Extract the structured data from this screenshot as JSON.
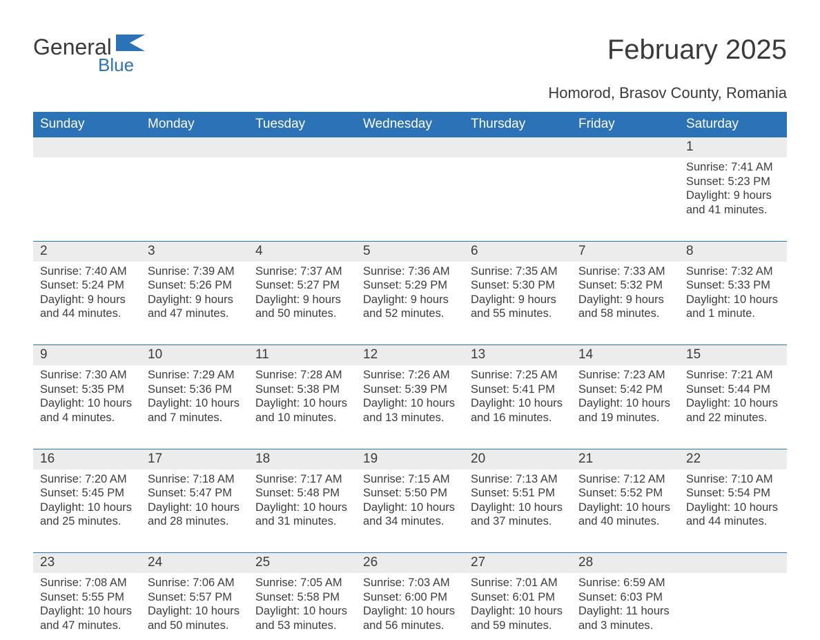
{
  "logo": {
    "word1": "General",
    "word2": "Blue",
    "flag_color": "#2b73b6",
    "text_color": "#3a3a3a"
  },
  "title": "February 2025",
  "location": "Homorod, Brasov County, Romania",
  "colors": {
    "header_bg": "#2b73b6",
    "header_text": "#ffffff",
    "daynum_bg": "#ececec",
    "row_divider": "#2b73b6",
    "body_text": "#3c3c3c",
    "page_bg": "#ffffff"
  },
  "typography": {
    "month_title_fontsize": 40,
    "location_fontsize": 22,
    "weekday_fontsize": 19,
    "daynum_fontsize": 19,
    "detail_fontsize": 16.5,
    "font_family": "Arial"
  },
  "layout": {
    "columns": 7,
    "weeks": 5
  },
  "weekdays": [
    "Sunday",
    "Monday",
    "Tuesday",
    "Wednesday",
    "Thursday",
    "Friday",
    "Saturday"
  ],
  "weeks": [
    [
      null,
      null,
      null,
      null,
      null,
      null,
      {
        "n": "1",
        "sunrise": "Sunrise: 7:41 AM",
        "sunset": "Sunset: 5:23 PM",
        "daylight": "Daylight: 9 hours and 41 minutes."
      }
    ],
    [
      {
        "n": "2",
        "sunrise": "Sunrise: 7:40 AM",
        "sunset": "Sunset: 5:24 PM",
        "daylight": "Daylight: 9 hours and 44 minutes."
      },
      {
        "n": "3",
        "sunrise": "Sunrise: 7:39 AM",
        "sunset": "Sunset: 5:26 PM",
        "daylight": "Daylight: 9 hours and 47 minutes."
      },
      {
        "n": "4",
        "sunrise": "Sunrise: 7:37 AM",
        "sunset": "Sunset: 5:27 PM",
        "daylight": "Daylight: 9 hours and 50 minutes."
      },
      {
        "n": "5",
        "sunrise": "Sunrise: 7:36 AM",
        "sunset": "Sunset: 5:29 PM",
        "daylight": "Daylight: 9 hours and 52 minutes."
      },
      {
        "n": "6",
        "sunrise": "Sunrise: 7:35 AM",
        "sunset": "Sunset: 5:30 PM",
        "daylight": "Daylight: 9 hours and 55 minutes."
      },
      {
        "n": "7",
        "sunrise": "Sunrise: 7:33 AM",
        "sunset": "Sunset: 5:32 PM",
        "daylight": "Daylight: 9 hours and 58 minutes."
      },
      {
        "n": "8",
        "sunrise": "Sunrise: 7:32 AM",
        "sunset": "Sunset: 5:33 PM",
        "daylight": "Daylight: 10 hours and 1 minute."
      }
    ],
    [
      {
        "n": "9",
        "sunrise": "Sunrise: 7:30 AM",
        "sunset": "Sunset: 5:35 PM",
        "daylight": "Daylight: 10 hours and 4 minutes."
      },
      {
        "n": "10",
        "sunrise": "Sunrise: 7:29 AM",
        "sunset": "Sunset: 5:36 PM",
        "daylight": "Daylight: 10 hours and 7 minutes."
      },
      {
        "n": "11",
        "sunrise": "Sunrise: 7:28 AM",
        "sunset": "Sunset: 5:38 PM",
        "daylight": "Daylight: 10 hours and 10 minutes."
      },
      {
        "n": "12",
        "sunrise": "Sunrise: 7:26 AM",
        "sunset": "Sunset: 5:39 PM",
        "daylight": "Daylight: 10 hours and 13 minutes."
      },
      {
        "n": "13",
        "sunrise": "Sunrise: 7:25 AM",
        "sunset": "Sunset: 5:41 PM",
        "daylight": "Daylight: 10 hours and 16 minutes."
      },
      {
        "n": "14",
        "sunrise": "Sunrise: 7:23 AM",
        "sunset": "Sunset: 5:42 PM",
        "daylight": "Daylight: 10 hours and 19 minutes."
      },
      {
        "n": "15",
        "sunrise": "Sunrise: 7:21 AM",
        "sunset": "Sunset: 5:44 PM",
        "daylight": "Daylight: 10 hours and 22 minutes."
      }
    ],
    [
      {
        "n": "16",
        "sunrise": "Sunrise: 7:20 AM",
        "sunset": "Sunset: 5:45 PM",
        "daylight": "Daylight: 10 hours and 25 minutes."
      },
      {
        "n": "17",
        "sunrise": "Sunrise: 7:18 AM",
        "sunset": "Sunset: 5:47 PM",
        "daylight": "Daylight: 10 hours and 28 minutes."
      },
      {
        "n": "18",
        "sunrise": "Sunrise: 7:17 AM",
        "sunset": "Sunset: 5:48 PM",
        "daylight": "Daylight: 10 hours and 31 minutes."
      },
      {
        "n": "19",
        "sunrise": "Sunrise: 7:15 AM",
        "sunset": "Sunset: 5:50 PM",
        "daylight": "Daylight: 10 hours and 34 minutes."
      },
      {
        "n": "20",
        "sunrise": "Sunrise: 7:13 AM",
        "sunset": "Sunset: 5:51 PM",
        "daylight": "Daylight: 10 hours and 37 minutes."
      },
      {
        "n": "21",
        "sunrise": "Sunrise: 7:12 AM",
        "sunset": "Sunset: 5:52 PM",
        "daylight": "Daylight: 10 hours and 40 minutes."
      },
      {
        "n": "22",
        "sunrise": "Sunrise: 7:10 AM",
        "sunset": "Sunset: 5:54 PM",
        "daylight": "Daylight: 10 hours and 44 minutes."
      }
    ],
    [
      {
        "n": "23",
        "sunrise": "Sunrise: 7:08 AM",
        "sunset": "Sunset: 5:55 PM",
        "daylight": "Daylight: 10 hours and 47 minutes."
      },
      {
        "n": "24",
        "sunrise": "Sunrise: 7:06 AM",
        "sunset": "Sunset: 5:57 PM",
        "daylight": "Daylight: 10 hours and 50 minutes."
      },
      {
        "n": "25",
        "sunrise": "Sunrise: 7:05 AM",
        "sunset": "Sunset: 5:58 PM",
        "daylight": "Daylight: 10 hours and 53 minutes."
      },
      {
        "n": "26",
        "sunrise": "Sunrise: 7:03 AM",
        "sunset": "Sunset: 6:00 PM",
        "daylight": "Daylight: 10 hours and 56 minutes."
      },
      {
        "n": "27",
        "sunrise": "Sunrise: 7:01 AM",
        "sunset": "Sunset: 6:01 PM",
        "daylight": "Daylight: 10 hours and 59 minutes."
      },
      {
        "n": "28",
        "sunrise": "Sunrise: 6:59 AM",
        "sunset": "Sunset: 6:03 PM",
        "daylight": "Daylight: 11 hours and 3 minutes."
      },
      null
    ]
  ]
}
